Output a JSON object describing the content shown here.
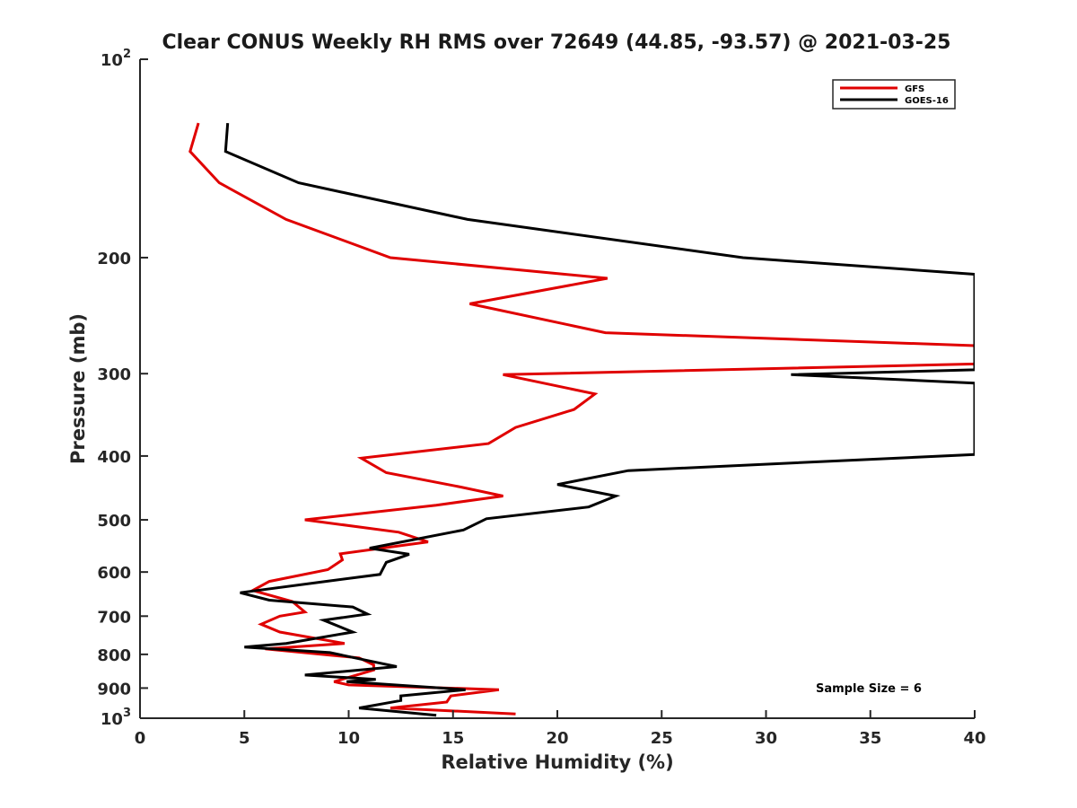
{
  "chart_data": {
    "type": "line",
    "title": "Clear CONUS Weekly RH RMS over 72649 (44.85, -93.57) @ 2021-03-25",
    "xlabel": "Relative Humidity (%)",
    "ylabel": "Pressure (mb)",
    "xlim": [
      0,
      40
    ],
    "ylim": [
      100,
      1000
    ],
    "yscale": "log",
    "y_reversed": true,
    "grid": false,
    "legend_position": "top-right",
    "xticks": [
      0,
      5,
      10,
      15,
      20,
      25,
      30,
      35,
      40
    ],
    "xtick_labels": [
      "0",
      "5",
      "10",
      "15",
      "20",
      "25",
      "30",
      "35",
      "40"
    ],
    "yticks": [
      100,
      200,
      300,
      400,
      500,
      600,
      700,
      800,
      900,
      1000
    ],
    "ytick_labels": [
      {
        "base": "10",
        "exp": "2"
      },
      {
        "base": "200",
        "exp": ""
      },
      {
        "base": "300",
        "exp": ""
      },
      {
        "base": "400",
        "exp": ""
      },
      {
        "base": "500",
        "exp": ""
      },
      {
        "base": "600",
        "exp": ""
      },
      {
        "base": "700",
        "exp": ""
      },
      {
        "base": "800",
        "exp": ""
      },
      {
        "base": "900",
        "exp": ""
      },
      {
        "base": "10",
        "exp": "3"
      }
    ],
    "annotation": "Sample Size = 6",
    "series": [
      {
        "name": "GFS",
        "color": "#e00000",
        "points": [
          [
            2.8,
            125
          ],
          [
            2.4,
            138
          ],
          [
            3.8,
            154
          ],
          [
            7.0,
            175
          ],
          [
            12.0,
            200
          ],
          [
            22.4,
            215
          ],
          [
            15.8,
            235
          ],
          [
            22.3,
            260
          ],
          [
            40.0,
            272
          ],
          [
            40.0,
            290
          ],
          [
            17.4,
            301
          ],
          [
            21.8,
            322
          ],
          [
            20.8,
            340
          ],
          [
            18.0,
            362
          ],
          [
            16.7,
            383
          ],
          [
            10.6,
            403
          ],
          [
            11.8,
            424
          ],
          [
            15.4,
            446
          ],
          [
            17.4,
            460
          ],
          [
            14.2,
            475
          ],
          [
            7.9,
            500
          ],
          [
            12.4,
            522
          ],
          [
            13.8,
            540
          ],
          [
            9.6,
            563
          ],
          [
            9.7,
            575
          ],
          [
            9.0,
            595
          ],
          [
            6.2,
            620
          ],
          [
            5.4,
            640
          ],
          [
            7.3,
            665
          ],
          [
            7.9,
            690
          ],
          [
            6.7,
            700
          ],
          [
            5.8,
            720
          ],
          [
            6.7,
            740
          ],
          [
            9.8,
            770
          ],
          [
            6.0,
            785
          ],
          [
            10.5,
            810
          ],
          [
            11.2,
            830
          ],
          [
            11.2,
            845
          ],
          [
            9.3,
            880
          ],
          [
            10.0,
            890
          ],
          [
            17.2,
            905
          ],
          [
            14.9,
            925
          ],
          [
            14.7,
            945
          ],
          [
            12.0,
            965
          ],
          [
            18.0,
            985
          ]
        ]
      },
      {
        "name": "GOES-16",
        "color": "#000000",
        "points": [
          [
            4.2,
            125
          ],
          [
            4.1,
            138
          ],
          [
            7.6,
            154
          ],
          [
            15.7,
            175
          ],
          [
            28.9,
            200
          ],
          [
            40.0,
            212
          ],
          [
            40.0,
            296
          ],
          [
            31.2,
            301
          ],
          [
            40.0,
            310
          ],
          [
            40.0,
            398
          ],
          [
            23.4,
            421
          ],
          [
            20.0,
            442
          ],
          [
            22.8,
            460
          ],
          [
            21.5,
            478
          ],
          [
            16.6,
            498
          ],
          [
            15.5,
            518
          ],
          [
            11.0,
            552
          ],
          [
            12.9,
            564
          ],
          [
            11.8,
            580
          ],
          [
            11.5,
            605
          ],
          [
            8.9,
            620
          ],
          [
            4.8,
            645
          ],
          [
            6.2,
            662
          ],
          [
            10.2,
            678
          ],
          [
            10.9,
            695
          ],
          [
            8.8,
            710
          ],
          [
            10.2,
            740
          ],
          [
            7.0,
            770
          ],
          [
            5.0,
            780
          ],
          [
            9.1,
            795
          ],
          [
            11.1,
            820
          ],
          [
            12.3,
            835
          ],
          [
            7.9,
            860
          ],
          [
            11.3,
            873
          ],
          [
            9.9,
            880
          ],
          [
            15.6,
            905
          ],
          [
            12.5,
            925
          ],
          [
            12.5,
            940
          ],
          [
            10.5,
            965
          ],
          [
            14.2,
            990
          ]
        ]
      }
    ]
  }
}
